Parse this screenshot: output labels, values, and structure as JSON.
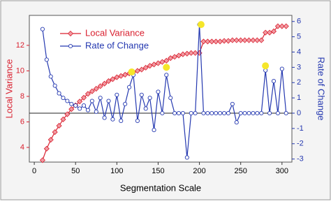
{
  "chart_data": {
    "type": "line",
    "x_label": "Segmentation Scale",
    "y_label": "Local Variance",
    "y2_label": "Rate of Change",
    "x": [
      10,
      15,
      20,
      25,
      30,
      35,
      40,
      45,
      50,
      55,
      60,
      65,
      70,
      75,
      80,
      85,
      90,
      95,
      100,
      105,
      110,
      115,
      120,
      125,
      130,
      135,
      140,
      145,
      150,
      155,
      160,
      165,
      170,
      175,
      180,
      185,
      190,
      195,
      200,
      205,
      210,
      215,
      220,
      225,
      230,
      235,
      240,
      245,
      250,
      255,
      260,
      265,
      270,
      275,
      280,
      285,
      290,
      295,
      300,
      305
    ],
    "series": [
      {
        "name": "Local Variance",
        "color": "#d9202f",
        "marker_fill": "#f19aa2",
        "marker": "diamond",
        "values": [
          3.0,
          3.9,
          4.6,
          5.2,
          5.7,
          6.2,
          6.6,
          7.0,
          7.3,
          7.6,
          7.9,
          8.2,
          8.4,
          8.6,
          8.8,
          9.0,
          9.2,
          9.35,
          9.5,
          9.6,
          9.7,
          9.8,
          9.9,
          10.0,
          10.1,
          10.25,
          10.4,
          10.5,
          10.6,
          10.7,
          10.8,
          11.0,
          11.1,
          11.2,
          11.3,
          11.35,
          11.4,
          11.4,
          11.4,
          12.3,
          12.3,
          12.3,
          12.3,
          12.3,
          12.35,
          12.35,
          12.4,
          12.4,
          12.4,
          12.4,
          12.4,
          12.4,
          12.4,
          12.4,
          13.0,
          13.0,
          13.1,
          13.5,
          13.5,
          13.5
        ]
      },
      {
        "name": "Rate of Change",
        "color": "#2438b0",
        "marker_fill": "#ffffff",
        "marker": "circle",
        "axis": "y2",
        "values": [
          5.5,
          3.5,
          2.4,
          1.8,
          1.3,
          1.0,
          0.8,
          0.6,
          0.5,
          0.3,
          0.5,
          0.2,
          0.8,
          0.1,
          1.0,
          -0.3,
          0.8,
          -0.4,
          1.2,
          -0.5,
          0.6,
          1.7,
          2.5,
          -0.5,
          1.2,
          0.3,
          1.0,
          -1.1,
          1.4,
          0,
          2.5,
          1.0,
          0,
          0,
          0,
          -2.9,
          0,
          0,
          5.8,
          0,
          0,
          0,
          0,
          0,
          0,
          0,
          0.6,
          -0.6,
          0,
          0,
          0,
          0,
          0,
          0,
          2.8,
          0,
          2.1,
          0,
          2.9,
          0
        ]
      }
    ],
    "highlight_points": {
      "color": "#f5e62a",
      "axis": "y2",
      "x": [
        118,
        160,
        202,
        280
      ],
      "values": [
        2.7,
        3.0,
        5.8,
        3.1
      ]
    },
    "reference_line": {
      "axis": "y2",
      "value": 0
    },
    "xlim": [
      -6,
      312
    ],
    "xticks": [
      0,
      50,
      100,
      150,
      200,
      250,
      300
    ],
    "ylim": [
      2.85,
      14.35
    ],
    "yticks": [
      4,
      6,
      8,
      10,
      12
    ],
    "y2lim": [
      -3.2,
      6.4
    ],
    "y2ticks": [
      -3,
      -2,
      -1,
      0,
      1,
      2,
      3,
      4,
      5,
      6
    ],
    "legend": "upper left"
  }
}
